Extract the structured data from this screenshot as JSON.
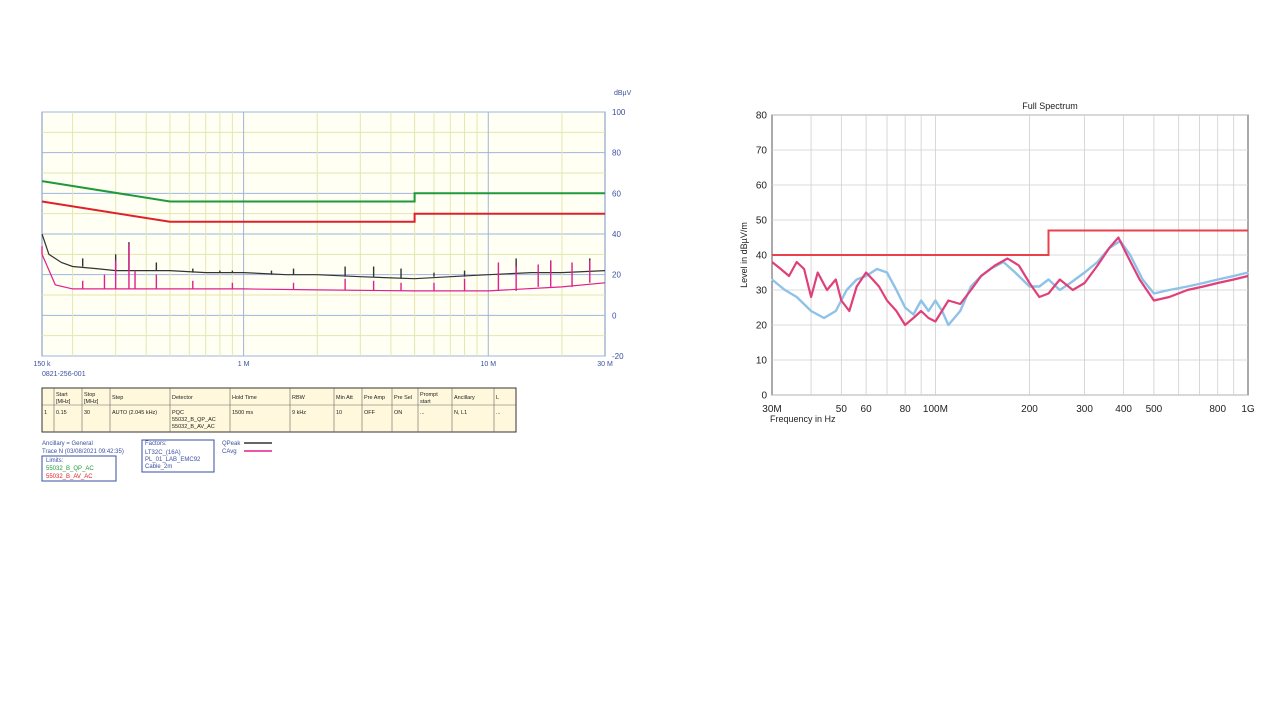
{
  "chart_data": [
    {
      "type": "line",
      "x_scale": "log",
      "xlim_mhz": [
        0.15,
        30
      ],
      "ylim": [
        -20,
        100
      ],
      "y_unit": "dBµV",
      "yticks": [
        100,
        80,
        60,
        40,
        20,
        0,
        -20
      ],
      "xtick_labels": [
        {
          "label": "150 k",
          "x_mhz": 0.15
        },
        {
          "label": "1 M",
          "x_mhz": 1
        },
        {
          "label": "10 M",
          "x_mhz": 10
        },
        {
          "label": "30 M",
          "x_mhz": 30
        }
      ],
      "grid": true,
      "footer_id": "0821-256-001",
      "limits": [
        {
          "name": "55032_B_QP_AC",
          "color": "#1e9a3a",
          "points": [
            [
              0.15,
              66
            ],
            [
              0.5,
              56
            ],
            [
              5,
              56
            ],
            [
              5,
              60
            ],
            [
              30,
              60
            ]
          ]
        },
        {
          "name": "55032_B_AV_AC",
          "color": "#e0202a",
          "points": [
            [
              0.15,
              56
            ],
            [
              0.5,
              46
            ],
            [
              5,
              46
            ],
            [
              5,
              50
            ],
            [
              30,
              50
            ]
          ]
        }
      ],
      "series": [
        {
          "name": "QPeak",
          "color": "#333333",
          "points": [
            [
              0.15,
              40
            ],
            [
              0.16,
              30
            ],
            [
              0.18,
              26
            ],
            [
              0.2,
              24
            ],
            [
              0.25,
              23
            ],
            [
              0.3,
              22
            ],
            [
              0.4,
              22
            ],
            [
              0.5,
              22
            ],
            [
              0.7,
              21
            ],
            [
              1,
              21
            ],
            [
              1.5,
              20
            ],
            [
              2,
              20
            ],
            [
              3,
              19
            ],
            [
              5,
              18
            ],
            [
              7,
              19
            ],
            [
              10,
              20
            ],
            [
              15,
              21
            ],
            [
              20,
              21
            ],
            [
              30,
              22
            ]
          ],
          "peaks": [
            [
              0.22,
              28
            ],
            [
              0.3,
              30
            ],
            [
              0.34,
              36
            ],
            [
              0.44,
              26
            ],
            [
              0.62,
              23
            ],
            [
              0.8,
              22
            ],
            [
              0.9,
              22
            ],
            [
              1.3,
              22
            ],
            [
              1.6,
              23
            ],
            [
              2.6,
              24
            ],
            [
              3.4,
              24
            ],
            [
              4.4,
              23
            ],
            [
              6,
              21
            ],
            [
              8,
              22
            ],
            [
              13,
              28
            ],
            [
              18,
              27
            ],
            [
              26,
              28
            ]
          ]
        },
        {
          "name": "CAvg",
          "color": "#e0208c",
          "points": [
            [
              0.15,
              30
            ],
            [
              0.17,
              15
            ],
            [
              0.2,
              13
            ],
            [
              0.3,
              13
            ],
            [
              0.5,
              13
            ],
            [
              1,
              13
            ],
            [
              2,
              12.5
            ],
            [
              5,
              12
            ],
            [
              10,
              12
            ],
            [
              20,
              14
            ],
            [
              30,
              16
            ]
          ],
          "peaks": [
            [
              0.15,
              34
            ],
            [
              0.22,
              17
            ],
            [
              0.27,
              20
            ],
            [
              0.3,
              27
            ],
            [
              0.34,
              35
            ],
            [
              0.36,
              22
            ],
            [
              0.44,
              20
            ],
            [
              0.62,
              17
            ],
            [
              0.9,
              16
            ],
            [
              1.6,
              16
            ],
            [
              2.6,
              18
            ],
            [
              3.4,
              17
            ],
            [
              4.4,
              16
            ],
            [
              6,
              16
            ],
            [
              8,
              18
            ],
            [
              11,
              26
            ],
            [
              13,
              24
            ],
            [
              16,
              25
            ],
            [
              18,
              27
            ],
            [
              22,
              26
            ],
            [
              26,
              27
            ]
          ]
        }
      ],
      "settings_table": {
        "headers": [
          "",
          "Start [MHz]",
          "Stop [MHz]",
          "Step",
          "Detector",
          "Hold Time",
          "RBW",
          "Min Att",
          "Pre Amp",
          "Pre Sel",
          "Prompt start",
          "Ancillary",
          "L"
        ],
        "rows": [
          [
            "1",
            "0.15",
            "30",
            "AUTO (2.045 kHz)",
            "PQC 55032_B_QP_AC 55032_B_AV_AC",
            "1500 ms",
            "9 kHz",
            "10",
            "OFF",
            "ON",
            "...",
            "N, L1",
            "..."
          ]
        ]
      },
      "legend": {
        "ancillary": "Ancillary = General",
        "trace": "Trace N (03/08/2021 09:42:35)",
        "limits_title": "Limits:",
        "factors_title": "Factors:",
        "factors": [
          "LT32C_(16A)",
          "PL_01_LAB_EMC92",
          "Cable_2m"
        ],
        "traces": [
          {
            "label": "QPeak",
            "color": "#333333"
          },
          {
            "label": "CAvg",
            "color": "#e0208c"
          }
        ]
      }
    },
    {
      "type": "line",
      "title": "Full Spectrum",
      "xlabel": "Frequency in Hz",
      "ylabel": "Level in dBµV/m",
      "x_scale": "log",
      "xlim_mhz": [
        30,
        1000
      ],
      "ylim": [
        0,
        80
      ],
      "yticks": [
        0,
        10,
        20,
        30,
        40,
        50,
        60,
        70,
        80
      ],
      "xtick_labels": [
        {
          "label": "30M",
          "x_mhz": 30
        },
        {
          "label": "50",
          "x_mhz": 50
        },
        {
          "label": "60",
          "x_mhz": 60
        },
        {
          "label": "80",
          "x_mhz": 80
        },
        {
          "label": "100M",
          "x_mhz": 100
        },
        {
          "label": "200",
          "x_mhz": 200
        },
        {
          "label": "300",
          "x_mhz": 300
        },
        {
          "label": "400",
          "x_mhz": 400
        },
        {
          "label": "500",
          "x_mhz": 500
        },
        {
          "label": "800",
          "x_mhz": 800
        },
        {
          "label": "1G",
          "x_mhz": 1000
        }
      ],
      "grid": true,
      "limits": [
        {
          "color": "#e8414c",
          "points": [
            [
              30,
              40
            ],
            [
              230,
              40
            ],
            [
              230,
              47
            ],
            [
              1000,
              47
            ]
          ]
        }
      ],
      "series": [
        {
          "color": "#8ec2e8",
          "points": [
            [
              30,
              33
            ],
            [
              33,
              30
            ],
            [
              36,
              28
            ],
            [
              40,
              24
            ],
            [
              44,
              22
            ],
            [
              48,
              24
            ],
            [
              52,
              30
            ],
            [
              56,
              33
            ],
            [
              60,
              34
            ],
            [
              65,
              36
            ],
            [
              70,
              35
            ],
            [
              75,
              30
            ],
            [
              80,
              25
            ],
            [
              85,
              23
            ],
            [
              90,
              27
            ],
            [
              95,
              24
            ],
            [
              100,
              27
            ],
            [
              105,
              24
            ],
            [
              110,
              20
            ],
            [
              120,
              24
            ],
            [
              130,
              31
            ],
            [
              140,
              34
            ],
            [
              150,
              36
            ],
            [
              165,
              38
            ],
            [
              180,
              35
            ],
            [
              200,
              31
            ],
            [
              215,
              31
            ],
            [
              230,
              33
            ],
            [
              250,
              30
            ],
            [
              270,
              32
            ],
            [
              300,
              35
            ],
            [
              330,
              38
            ],
            [
              360,
              42
            ],
            [
              390,
              44
            ],
            [
              420,
              40
            ],
            [
              460,
              33
            ],
            [
              500,
              29
            ],
            [
              560,
              30
            ],
            [
              640,
              31
            ],
            [
              720,
              32
            ],
            [
              800,
              33
            ],
            [
              900,
              34
            ],
            [
              1000,
              35
            ]
          ]
        },
        {
          "color": "#e0407a",
          "points": [
            [
              30,
              38
            ],
            [
              32,
              36
            ],
            [
              34,
              34
            ],
            [
              36,
              38
            ],
            [
              38,
              36
            ],
            [
              40,
              28
            ],
            [
              42,
              35
            ],
            [
              45,
              30
            ],
            [
              48,
              33
            ],
            [
              50,
              27
            ],
            [
              53,
              24
            ],
            [
              56,
              31
            ],
            [
              60,
              35
            ],
            [
              63,
              33
            ],
            [
              66,
              31
            ],
            [
              70,
              27
            ],
            [
              75,
              24
            ],
            [
              80,
              20
            ],
            [
              85,
              22
            ],
            [
              90,
              24
            ],
            [
              95,
              22
            ],
            [
              100,
              21
            ],
            [
              110,
              27
            ],
            [
              120,
              26
            ],
            [
              130,
              30
            ],
            [
              140,
              34
            ],
            [
              155,
              37
            ],
            [
              170,
              39
            ],
            [
              185,
              37
            ],
            [
              200,
              32
            ],
            [
              215,
              28
            ],
            [
              230,
              29
            ],
            [
              250,
              33
            ],
            [
              275,
              30
            ],
            [
              300,
              32
            ],
            [
              330,
              37
            ],
            [
              360,
              42
            ],
            [
              385,
              45
            ],
            [
              410,
              40
            ],
            [
              450,
              33
            ],
            [
              500,
              27
            ],
            [
              560,
              28
            ],
            [
              640,
              30
            ],
            [
              720,
              31
            ],
            [
              800,
              32
            ],
            [
              900,
              33
            ],
            [
              1000,
              34
            ]
          ]
        }
      ]
    }
  ]
}
